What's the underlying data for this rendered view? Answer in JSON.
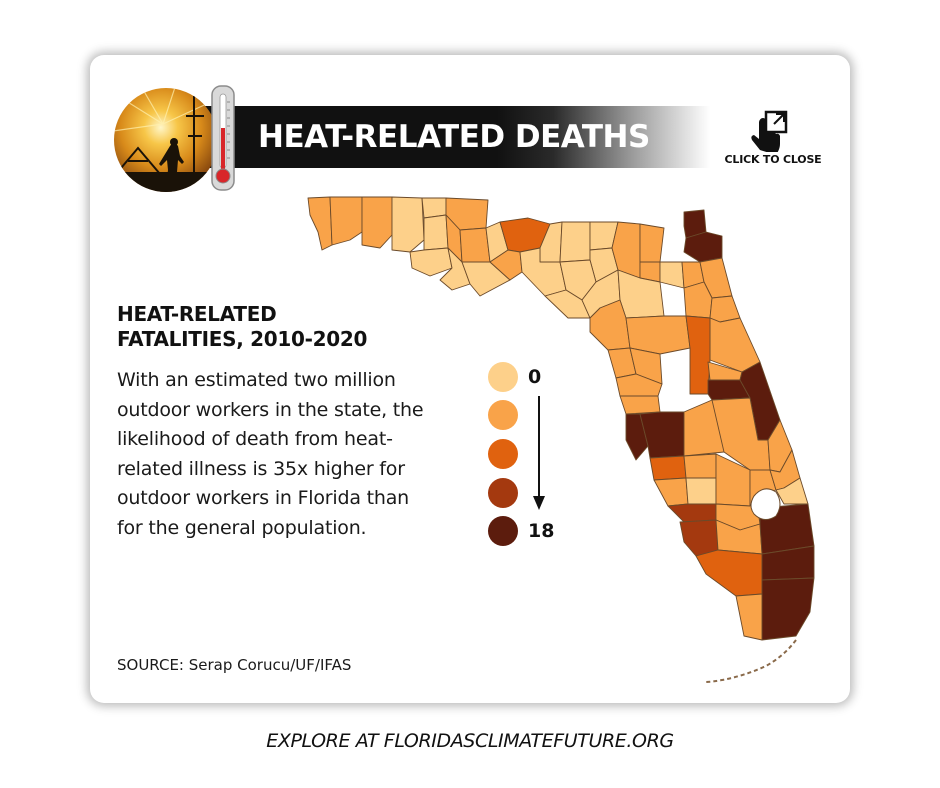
{
  "header": {
    "title": "HEAT-RELATED DEATHS",
    "close_label": "CLICK TO CLOSE"
  },
  "info": {
    "subtitle_line1": "HEAT-RELATED",
    "subtitle_line2": "FATALITIES, 2010-2020",
    "body": "With an estimated two million outdoor workers in the state, the likelihood of death from heat-related illness is 35x higher for outdoor workers in Florida than for the general population.",
    "source": "SOURCE: Serap Corucu/UF/IFAS"
  },
  "legend": {
    "min_label": "0",
    "max_label": "18",
    "scale_colors": [
      "#fdd08a",
      "#f9a349",
      "#e0620f",
      "#a4390f",
      "#5c1c0d"
    ]
  },
  "map_colors": {
    "outline": "#6b4a2a"
  },
  "footer": {
    "text": "EXPLORE AT FLORIDASCLIMATEFUTURE.ORG"
  }
}
